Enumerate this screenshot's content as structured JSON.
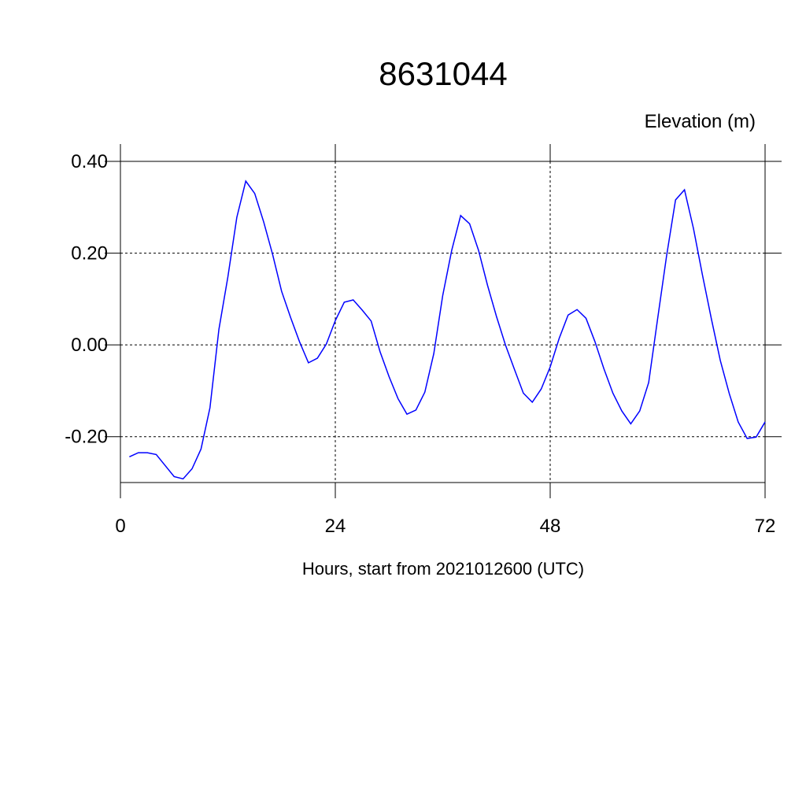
{
  "chart_data": {
    "type": "line",
    "title": "8631044",
    "y_label": "Elevation (m)",
    "x_label": "Hours, start from 2021012600 (UTC)",
    "xlim": [
      0,
      72
    ],
    "xticks": [
      0,
      24,
      48,
      72
    ],
    "ylim": [
      -0.3,
      0.4
    ],
    "yticks": [
      {
        "value": -0.2,
        "label": "-0.20"
      },
      {
        "value": 0,
        "label": "0.00"
      },
      {
        "value": 0.2,
        "label": "0.20"
      },
      {
        "value": 0.4,
        "label": "0.40"
      }
    ],
    "grid": true,
    "x": [
      1,
      2,
      3,
      4,
      5,
      6,
      7,
      8,
      9,
      10,
      11,
      12,
      13,
      14,
      15,
      16,
      17,
      18,
      19,
      20,
      21,
      22,
      23,
      24,
      25,
      26,
      27,
      28,
      29,
      30,
      31,
      32,
      33,
      34,
      35,
      36,
      37,
      38,
      39,
      40,
      41,
      42,
      43,
      44,
      45,
      46,
      47,
      48,
      49,
      50,
      51,
      52,
      53,
      54,
      55,
      56,
      57,
      58,
      59,
      60,
      61,
      62,
      63,
      64,
      65,
      66,
      67,
      68,
      69,
      70,
      71,
      72
    ],
    "series": [
      {
        "color": "#0000ff",
        "values": [
          -0.244,
          -0.235,
          -0.235,
          -0.239,
          -0.263,
          -0.287,
          -0.292,
          -0.27,
          -0.227,
          -0.137,
          0.034,
          0.148,
          0.278,
          0.357,
          0.33,
          0.268,
          0.197,
          0.117,
          0.06,
          0.007,
          -0.039,
          -0.029,
          0.002,
          0.053,
          0.093,
          0.098,
          0.076,
          0.052,
          -0.015,
          -0.069,
          -0.117,
          -0.151,
          -0.142,
          -0.103,
          -0.019,
          0.108,
          0.206,
          0.282,
          0.264,
          0.206,
          0.13,
          0.062,
          0.0,
          -0.053,
          -0.105,
          -0.125,
          -0.096,
          -0.048,
          0.014,
          0.065,
          0.077,
          0.058,
          0.007,
          -0.052,
          -0.105,
          -0.144,
          -0.172,
          -0.144,
          -0.082,
          0.057,
          0.194,
          0.316,
          0.338,
          0.254,
          0.153,
          0.057,
          -0.034,
          -0.106,
          -0.168,
          -0.204,
          -0.201,
          -0.168
        ]
      }
    ]
  }
}
